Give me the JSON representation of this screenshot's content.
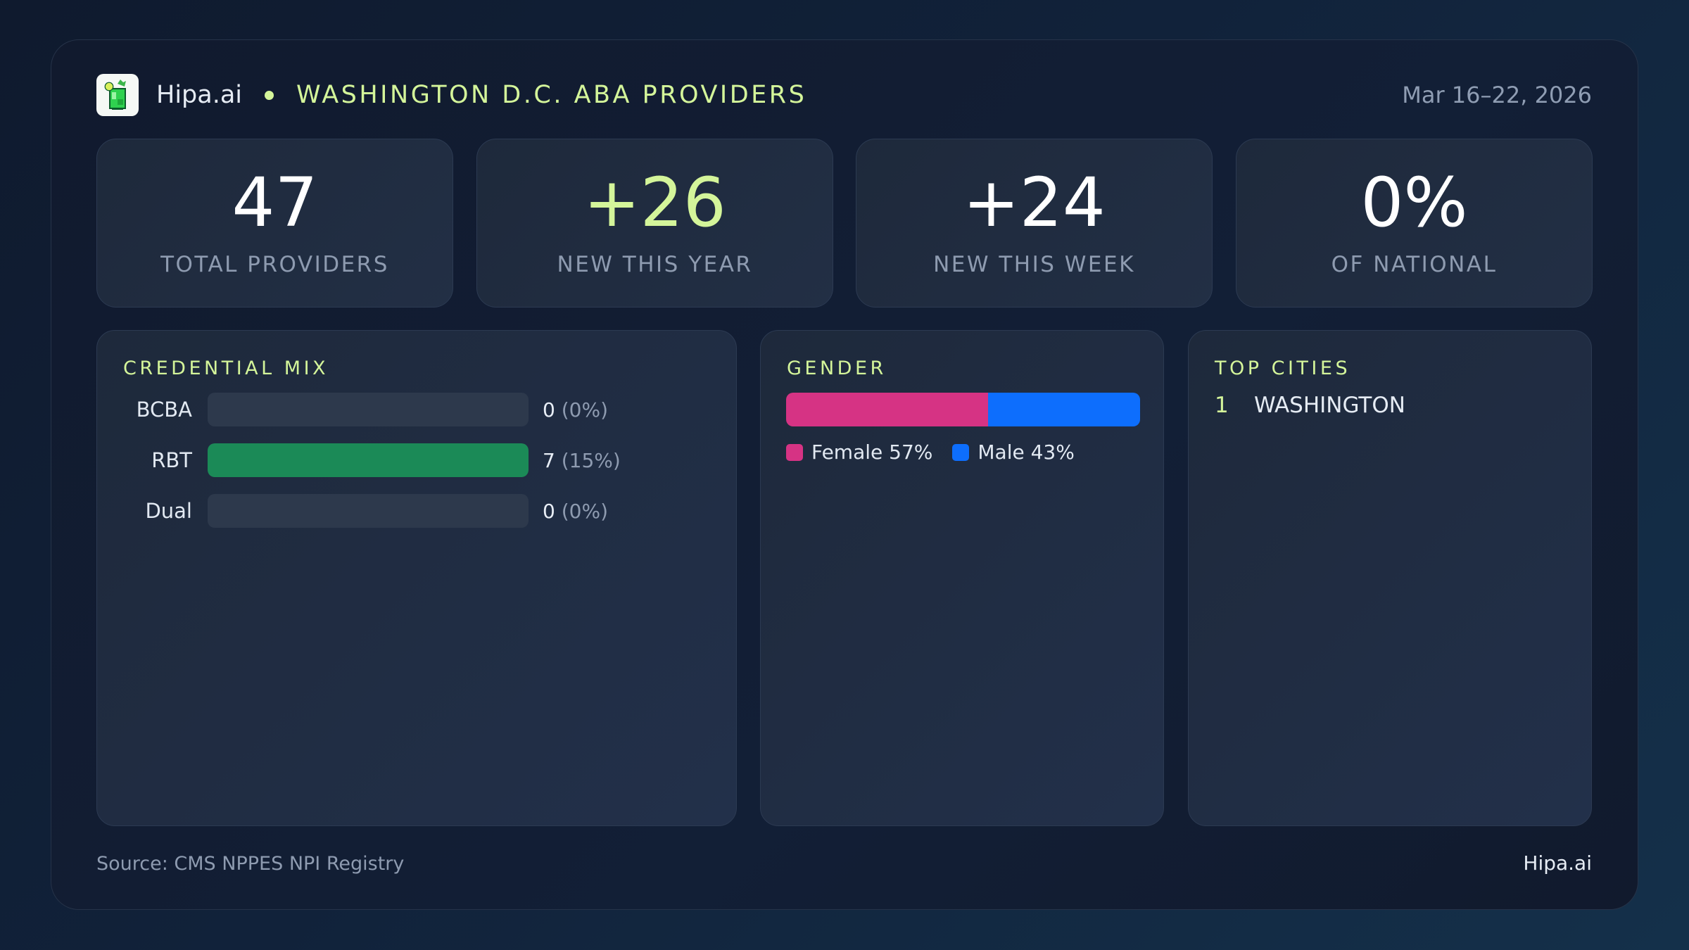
{
  "header": {
    "brand": "Hipa.ai",
    "title": "WASHINGTON D.C. ABA PROVIDERS",
    "date_range": "Mar 16–22, 2026",
    "logo_icon": "mojito-glass-icon"
  },
  "stats": [
    {
      "value": "47",
      "label": "TOTAL PROVIDERS",
      "accent": false
    },
    {
      "value": "+26",
      "label": "NEW THIS YEAR",
      "accent": true
    },
    {
      "value": "+24",
      "label": "NEW THIS WEEK",
      "accent": false
    },
    {
      "value": "0%",
      "label": "OF NATIONAL",
      "accent": false
    }
  ],
  "credential_mix": {
    "title": "CREDENTIAL MIX",
    "rows": [
      {
        "label": "BCBA",
        "count": "0",
        "pct": "(0%)",
        "fill": 0
      },
      {
        "label": "RBT",
        "count": "7",
        "pct": "(15%)",
        "fill": 100
      },
      {
        "label": "Dual",
        "count": "0",
        "pct": "(0%)",
        "fill": 0
      }
    ],
    "fill_color": "#1b8a57"
  },
  "gender": {
    "title": "GENDER",
    "segments": [
      {
        "label": "Female 57%",
        "percent": 57,
        "color": "#d63384"
      },
      {
        "label": "Male 43%",
        "percent": 43,
        "color": "#0d6efd"
      }
    ]
  },
  "top_cities": {
    "title": "TOP CITIES",
    "items": [
      {
        "rank": "1",
        "name": "WASHINGTON"
      }
    ]
  },
  "footer": {
    "source": "Source: CMS NPPES NPI Registry",
    "brand": "Hipa.ai"
  },
  "colors": {
    "accent": "#d4f59a",
    "background": "#111a2e",
    "card": "#1e293b"
  }
}
